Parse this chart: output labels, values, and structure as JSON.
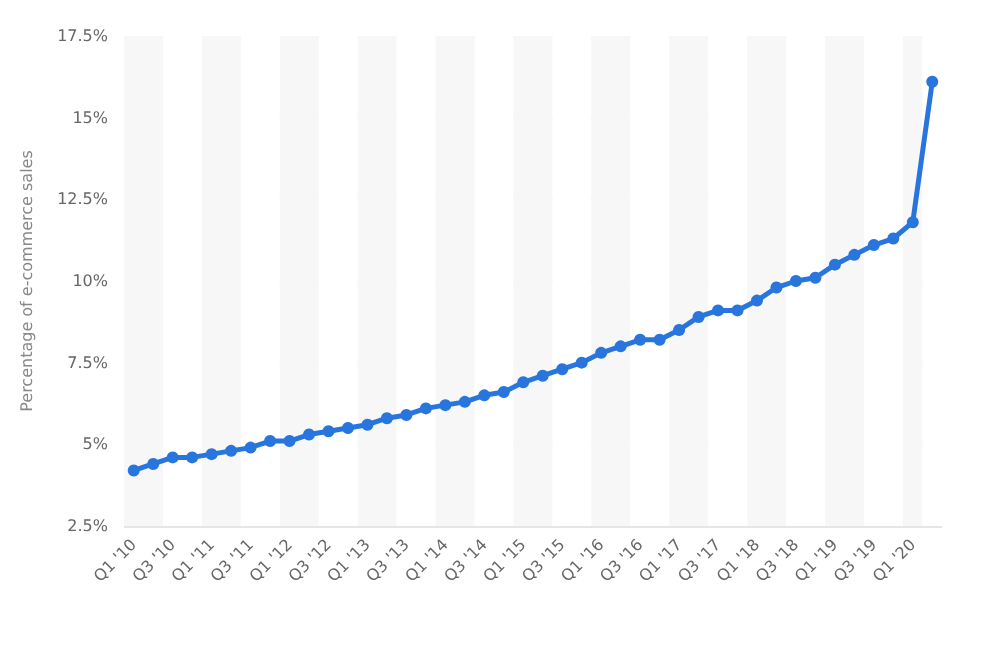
{
  "chart_data": {
    "type": "line",
    "ylabel": "Percentage of e-commerce sales",
    "categories": [
      "Q1 '10",
      null,
      "Q3 '10",
      null,
      "Q1 '11",
      null,
      "Q3 '11",
      null,
      "Q1 '12",
      null,
      "Q3 '12",
      null,
      "Q1 '13",
      null,
      "Q3 '13",
      null,
      "Q1 '14",
      null,
      "Q3 '14",
      null,
      "Q1 '15",
      null,
      "Q3 '15",
      null,
      "Q1 '16",
      null,
      "Q3 '16",
      null,
      "Q1 '17",
      null,
      "Q3 '17",
      null,
      "Q1 '18",
      null,
      "Q3 '18",
      null,
      "Q1 '19",
      null,
      "Q3 '19",
      null,
      "Q1 '20",
      null
    ],
    "values": [
      4.2,
      4.4,
      4.6,
      4.6,
      4.7,
      4.8,
      4.9,
      5.1,
      5.1,
      5.3,
      5.4,
      5.5,
      5.6,
      5.8,
      5.9,
      6.1,
      6.2,
      6.3,
      6.5,
      6.6,
      6.9,
      7.1,
      7.3,
      7.5,
      7.8,
      8.0,
      8.2,
      8.2,
      8.5,
      8.9,
      9.1,
      9.1,
      9.4,
      9.8,
      10.0,
      10.1,
      10.5,
      10.8,
      11.1,
      11.3,
      11.8,
      16.1
    ],
    "color": "#2876dd",
    "ylim": [
      2.5,
      17.5
    ],
    "yticks": [
      {
        "value": 2.5,
        "label": "2.5%"
      },
      {
        "value": 5,
        "label": "5%"
      },
      {
        "value": 7.5,
        "label": "7.5%"
      },
      {
        "value": 10,
        "label": "10%"
      },
      {
        "value": 12.5,
        "label": "12.5%"
      },
      {
        "value": 15,
        "label": "15%"
      },
      {
        "value": 17.5,
        "label": "17.5%"
      }
    ],
    "grid": "y",
    "marker": "circle",
    "line_style": "solid"
  }
}
